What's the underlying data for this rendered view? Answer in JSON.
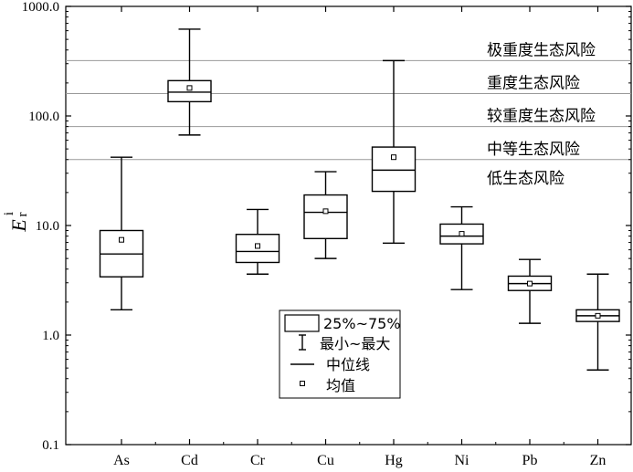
{
  "chart_data": {
    "type": "box",
    "y_scale": "log",
    "ylim": [
      0.1,
      1000
    ],
    "ylabel": {
      "main": "E",
      "sub": "r",
      "sup": "i"
    },
    "y_ticks": [
      {
        "value": 0.1,
        "label": "0.1"
      },
      {
        "value": 1,
        "label": "1.0"
      },
      {
        "value": 10,
        "label": "10.0"
      },
      {
        "value": 100,
        "label": "100.0"
      },
      {
        "value": 1000,
        "label": "1000.0"
      }
    ],
    "categories": [
      "As",
      "Cd",
      "Cr",
      "Cu",
      "Hg",
      "Ni",
      "Pb",
      "Zn"
    ],
    "boxes": [
      {
        "category": "As",
        "min": 1.7,
        "q1": 3.4,
        "median": 5.5,
        "q3": 9.0,
        "max": 42,
        "mean": 7.4
      },
      {
        "category": "Cd",
        "min": 67,
        "q1": 135,
        "median": 165,
        "q3": 210,
        "max": 620,
        "mean": 180
      },
      {
        "category": "Cr",
        "min": 3.6,
        "q1": 4.6,
        "median": 5.8,
        "q3": 8.3,
        "max": 14,
        "mean": 6.5
      },
      {
        "category": "Cu",
        "min": 5.0,
        "q1": 7.6,
        "median": 13.2,
        "q3": 19,
        "max": 31,
        "mean": 13.5
      },
      {
        "category": "Hg",
        "min": 6.9,
        "q1": 20.5,
        "median": 32,
        "q3": 52,
        "max": 320,
        "mean": 42
      },
      {
        "category": "Ni",
        "min": 2.6,
        "q1": 6.8,
        "median": 8.0,
        "q3": 10.3,
        "max": 14.8,
        "mean": 8.4
      },
      {
        "category": "Pb",
        "min": 1.28,
        "q1": 2.55,
        "median": 2.95,
        "q3": 3.45,
        "max": 4.9,
        "mean": 2.95
      },
      {
        "category": "Zn",
        "min": 0.48,
        "q1": 1.33,
        "median": 1.5,
        "q3": 1.7,
        "max": 3.6,
        "mean": 1.5
      }
    ],
    "risk_lines": [
      {
        "value": 320,
        "label": "极重度生态风险"
      },
      {
        "value": 160,
        "label": "重度生态风险"
      },
      {
        "value": 80,
        "label": "较重度生态风险"
      },
      {
        "value": 40,
        "label": "中等生态风险"
      }
    ],
    "bottom_zone_label": "低生态风险",
    "legend": {
      "placement": "center-bottom",
      "items": [
        {
          "key": "box",
          "label": "25%~75%"
        },
        {
          "key": "whisker",
          "label": "最小~最大"
        },
        {
          "key": "median",
          "label": "中位线"
        },
        {
          "key": "mean",
          "label": "均值"
        }
      ]
    },
    "colors": {
      "line": "#000000",
      "risk_line": "#999999",
      "background": "#ffffff"
    }
  }
}
